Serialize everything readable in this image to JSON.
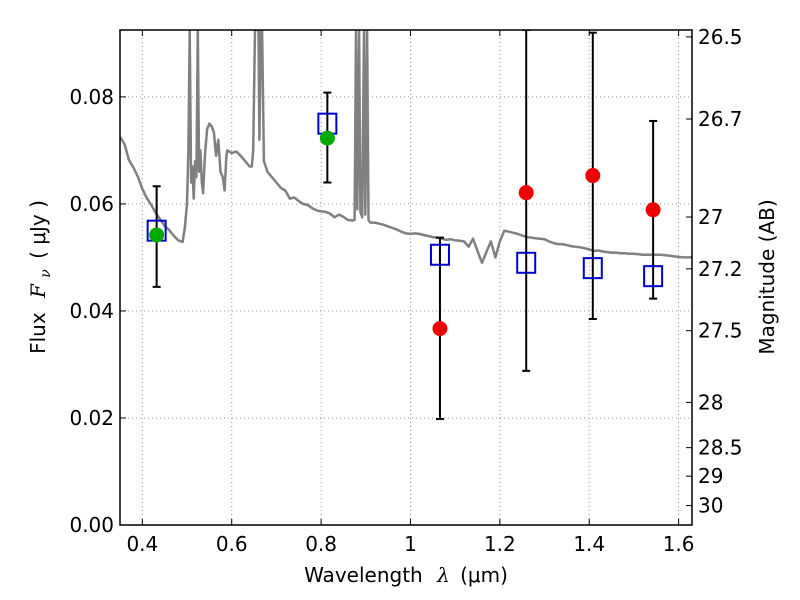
{
  "chart_data": {
    "type": "scatter",
    "title": "",
    "xlabel": {
      "prefix": "Wavelength",
      "symbol": "λ",
      "unit": "(μm)"
    },
    "ylabel": {
      "prefix": "Flux",
      "symbol": "F",
      "subscript": "ν",
      "unit": "( μJy )"
    },
    "y2label": "Magnitude (AB)",
    "xlim": [
      0.35,
      1.63
    ],
    "ylim": [
      0.0,
      0.0925
    ],
    "grid": true,
    "grid_style": "dotted",
    "x_ticks": [
      {
        "value": 0.4,
        "label": "0.4"
      },
      {
        "value": 0.6,
        "label": "0.6"
      },
      {
        "value": 0.8,
        "label": "0.8"
      },
      {
        "value": 1.0,
        "label": "1"
      },
      {
        "value": 1.2,
        "label": "1.2"
      },
      {
        "value": 1.4,
        "label": "1.4"
      },
      {
        "value": 1.6,
        "label": "1.6"
      }
    ],
    "y_ticks": [
      {
        "value": 0.0,
        "label": "0.00"
      },
      {
        "value": 0.02,
        "label": "0.02"
      },
      {
        "value": 0.04,
        "label": "0.04"
      },
      {
        "value": 0.06,
        "label": "0.06"
      },
      {
        "value": 0.08,
        "label": "0.08"
      }
    ],
    "y2_ticks": [
      {
        "value": 26.5,
        "label": "26.5"
      },
      {
        "value": 26.7,
        "label": "26.7"
      },
      {
        "value": 27.0,
        "label": "27"
      },
      {
        "value": 27.2,
        "label": "27.2"
      },
      {
        "value": 27.5,
        "label": "27.5"
      },
      {
        "value": 28.0,
        "label": "28"
      },
      {
        "value": 28.5,
        "label": "28.5"
      },
      {
        "value": 29.0,
        "label": "29"
      },
      {
        "value": 30.0,
        "label": "30"
      }
    ],
    "magnitude_zeropoint_ujy": 3631000000,
    "colors": {
      "template": "#808080",
      "model_marker": "#0000cc",
      "detection": "#00aa00",
      "low_significance": "#ee0000",
      "errorbar": "#000000",
      "grid": "#999999"
    },
    "series": [
      {
        "kind": "line",
        "points": [
          [
            0.35,
            0.0725
          ],
          [
            0.36,
            0.0712
          ],
          [
            0.37,
            0.0682
          ],
          [
            0.38,
            0.0668
          ],
          [
            0.39,
            0.0651
          ],
          [
            0.4,
            0.0628
          ],
          [
            0.41,
            0.0611
          ],
          [
            0.42,
            0.0598
          ],
          [
            0.43,
            0.0583
          ],
          [
            0.44,
            0.0571
          ],
          [
            0.45,
            0.0559
          ],
          [
            0.46,
            0.0551
          ],
          [
            0.47,
            0.0541
          ],
          [
            0.48,
            0.0532
          ],
          [
            0.49,
            0.0529
          ],
          [
            0.495,
            0.0555
          ],
          [
            0.5,
            0.06
          ],
          [
            0.503,
            0.07
          ],
          [
            0.506,
            0.0925
          ],
          [
            0.509,
            0.064
          ],
          [
            0.512,
            0.067
          ],
          [
            0.515,
            0.061
          ],
          [
            0.518,
            0.068
          ],
          [
            0.521,
            0.065
          ],
          [
            0.524,
            0.0925
          ],
          [
            0.527,
            0.066
          ],
          [
            0.53,
            0.07
          ],
          [
            0.533,
            0.064
          ],
          [
            0.536,
            0.062
          ],
          [
            0.54,
            0.069
          ],
          [
            0.545,
            0.074
          ],
          [
            0.55,
            0.075
          ],
          [
            0.555,
            0.0745
          ],
          [
            0.56,
            0.0735
          ],
          [
            0.565,
            0.069
          ],
          [
            0.57,
            0.072
          ],
          [
            0.575,
            0.066
          ],
          [
            0.58,
            0.065
          ],
          [
            0.584,
            0.0625
          ],
          [
            0.588,
            0.069
          ],
          [
            0.59,
            0.07
          ],
          [
            0.6,
            0.0695
          ],
          [
            0.61,
            0.0698
          ],
          [
            0.62,
            0.069
          ],
          [
            0.63,
            0.068
          ],
          [
            0.64,
            0.067
          ],
          [
            0.645,
            0.067
          ],
          [
            0.648,
            0.07
          ],
          [
            0.652,
            0.0925
          ],
          [
            0.656,
            0.0925
          ],
          [
            0.66,
            0.0925
          ],
          [
            0.662,
            0.072
          ],
          [
            0.665,
            0.0925
          ],
          [
            0.668,
            0.0925
          ],
          [
            0.672,
            0.068
          ],
          [
            0.68,
            0.066
          ],
          [
            0.69,
            0.065
          ],
          [
            0.7,
            0.064
          ],
          [
            0.71,
            0.063
          ],
          [
            0.72,
            0.0625
          ],
          [
            0.73,
            0.061
          ],
          [
            0.74,
            0.0612
          ],
          [
            0.75,
            0.0605
          ],
          [
            0.76,
            0.06
          ],
          [
            0.77,
            0.0598
          ],
          [
            0.78,
            0.0592
          ],
          [
            0.79,
            0.0588
          ],
          [
            0.8,
            0.0586
          ],
          [
            0.81,
            0.0585
          ],
          [
            0.82,
            0.0582
          ],
          [
            0.83,
            0.0575
          ],
          [
            0.84,
            0.058
          ],
          [
            0.85,
            0.0576
          ],
          [
            0.86,
            0.057
          ],
          [
            0.87,
            0.0569
          ],
          [
            0.875,
            0.057
          ],
          [
            0.878,
            0.0925
          ],
          [
            0.881,
            0.059
          ],
          [
            0.885,
            0.0925
          ],
          [
            0.888,
            0.0585
          ],
          [
            0.892,
            0.0575
          ],
          [
            0.896,
            0.0925
          ],
          [
            0.899,
            0.058
          ],
          [
            0.903,
            0.0925
          ],
          [
            0.906,
            0.057
          ],
          [
            0.91,
            0.0565
          ],
          [
            0.92,
            0.0565
          ],
          [
            0.93,
            0.0563
          ],
          [
            0.94,
            0.0561
          ],
          [
            0.95,
            0.0558
          ],
          [
            0.96,
            0.0555
          ],
          [
            0.97,
            0.0552
          ],
          [
            0.98,
            0.0548
          ],
          [
            0.99,
            0.0545
          ],
          [
            1.0,
            0.0544
          ],
          [
            1.01,
            0.0545
          ],
          [
            1.02,
            0.0544
          ],
          [
            1.03,
            0.0542
          ],
          [
            1.04,
            0.054
          ],
          [
            1.05,
            0.0538
          ],
          [
            1.06,
            0.0537
          ],
          [
            1.07,
            0.0535
          ],
          [
            1.08,
            0.0533
          ],
          [
            1.09,
            0.0534
          ],
          [
            1.1,
            0.0532
          ],
          [
            1.11,
            0.0531
          ],
          [
            1.12,
            0.053
          ],
          [
            1.13,
            0.052
          ],
          [
            1.14,
            0.0535
          ],
          [
            1.15,
            0.0512
          ],
          [
            1.16,
            0.049
          ],
          [
            1.17,
            0.051
          ],
          [
            1.18,
            0.053
          ],
          [
            1.19,
            0.05
          ],
          [
            1.2,
            0.053
          ],
          [
            1.21,
            0.055
          ],
          [
            1.22,
            0.0548
          ],
          [
            1.23,
            0.0546
          ],
          [
            1.24,
            0.0544
          ],
          [
            1.25,
            0.0541
          ],
          [
            1.26,
            0.0538
          ],
          [
            1.27,
            0.0537
          ],
          [
            1.28,
            0.0536
          ],
          [
            1.29,
            0.0535
          ],
          [
            1.3,
            0.0534
          ],
          [
            1.31,
            0.053
          ],
          [
            1.32,
            0.0527
          ],
          [
            1.33,
            0.0525
          ],
          [
            1.34,
            0.0525
          ],
          [
            1.35,
            0.0523
          ],
          [
            1.36,
            0.0521
          ],
          [
            1.37,
            0.052
          ],
          [
            1.38,
            0.0519
          ],
          [
            1.39,
            0.0517
          ],
          [
            1.4,
            0.0515
          ],
          [
            1.41,
            0.0512
          ],
          [
            1.42,
            0.0513
          ],
          [
            1.43,
            0.0511
          ],
          [
            1.44,
            0.051
          ],
          [
            1.45,
            0.0509
          ],
          [
            1.46,
            0.0509
          ],
          [
            1.47,
            0.0508
          ],
          [
            1.48,
            0.0508
          ],
          [
            1.49,
            0.0507
          ],
          [
            1.5,
            0.0507
          ],
          [
            1.51,
            0.0506
          ],
          [
            1.52,
            0.0505
          ],
          [
            1.53,
            0.0505
          ],
          [
            1.54,
            0.0505
          ],
          [
            1.55,
            0.0505
          ],
          [
            1.56,
            0.0505
          ],
          [
            1.57,
            0.0504
          ],
          [
            1.58,
            0.0503
          ],
          [
            1.59,
            0.0502
          ],
          [
            1.6,
            0.0501
          ],
          [
            1.61,
            0.05
          ],
          [
            1.62,
            0.05
          ],
          [
            1.63,
            0.05
          ]
        ]
      },
      {
        "kind": "open-square",
        "points": [
          [
            0.432,
            0.055
          ],
          [
            0.814,
            0.075
          ],
          [
            1.066,
            0.0505
          ],
          [
            1.259,
            0.049
          ],
          [
            1.408,
            0.048
          ],
          [
            1.543,
            0.0465
          ]
        ]
      },
      {
        "kind": "filled-circle",
        "points": [
          [
            0.432,
            0.0542
          ],
          [
            0.814,
            0.0723
          ]
        ]
      },
      {
        "kind": "filled-circle",
        "points": [
          [
            1.066,
            0.0367
          ],
          [
            1.259,
            0.0621
          ],
          [
            1.408,
            0.0653
          ],
          [
            1.543,
            0.0589
          ]
        ]
      },
      {
        "kind": "errorbar",
        "points": [
          {
            "x": 0.432,
            "y": 0.0542,
            "lo": 0.0445,
            "hi": 0.0633
          },
          {
            "x": 0.814,
            "y": 0.0723,
            "lo": 0.064,
            "hi": 0.0808
          },
          {
            "x": 1.066,
            "y": 0.0367,
            "lo": 0.0198,
            "hi": 0.0537
          },
          {
            "x": 1.259,
            "y": 0.0621,
            "lo": 0.0288,
            "hi": 0.0925
          },
          {
            "x": 1.408,
            "y": 0.0653,
            "lo": 0.0385,
            "hi": 0.092
          },
          {
            "x": 1.543,
            "y": 0.0589,
            "lo": 0.0423,
            "hi": 0.0755
          }
        ]
      }
    ]
  }
}
